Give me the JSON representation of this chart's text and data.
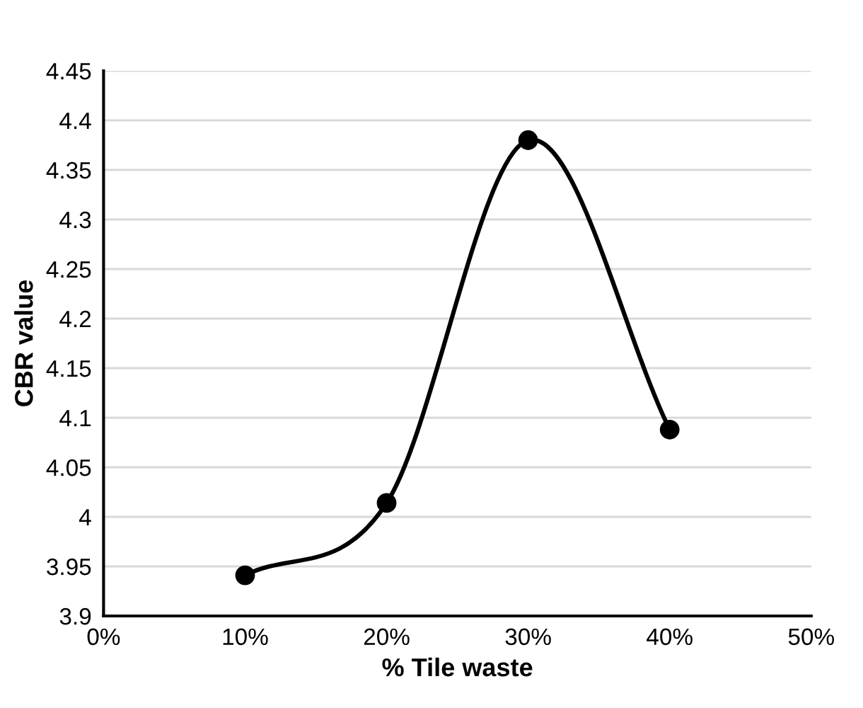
{
  "chart_data": {
    "type": "line",
    "xlabel": "% Tile waste",
    "ylabel": "CBR value",
    "x": [
      0.1,
      0.2,
      0.3,
      0.4
    ],
    "series": [
      {
        "color": "#000000",
        "values": [
          3.941,
          4.014,
          4.38,
          4.088
        ]
      }
    ],
    "xlim": [
      0,
      0.5
    ],
    "xticks": [
      {
        "value": 0,
        "label": "0%"
      },
      {
        "value": 0.1,
        "label": "10%"
      },
      {
        "value": 0.2,
        "label": "20%"
      },
      {
        "value": 0.3,
        "label": "30%"
      },
      {
        "value": 0.4,
        "label": "40%"
      },
      {
        "value": 0.5,
        "label": "50%"
      }
    ],
    "ylim": [
      3.9,
      4.45
    ],
    "yticks": [
      3.9,
      3.95,
      4,
      4.05,
      4.1,
      4.15,
      4.2,
      4.25,
      4.3,
      4.35,
      4.4,
      4.45
    ],
    "grid": "y",
    "marker": "circle",
    "line_style": "solid"
  }
}
